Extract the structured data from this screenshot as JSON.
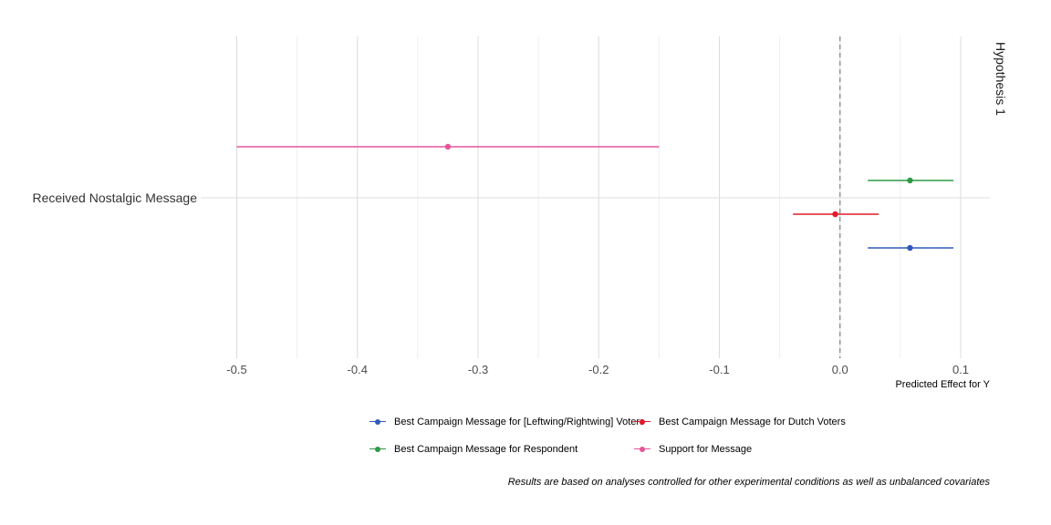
{
  "chart_data": {
    "type": "coefficient-plot",
    "categories": [
      "Received Nostalgic Message"
    ],
    "facet_label": "Hypothesis 1",
    "xlabel": "Predicted Effect for Y",
    "ylabel": "",
    "xlim": [
      -0.5,
      0.125
    ],
    "x_ticks": [
      -0.5,
      -0.4,
      -0.3,
      -0.2,
      -0.1,
      0.0,
      0.1
    ],
    "x_tick_labels": [
      "-0.5",
      "-0.4",
      "-0.3",
      "-0.2",
      "-0.1",
      "0.0",
      "0.1"
    ],
    "reference_line": 0,
    "grid": true,
    "legend_position": "bottom",
    "series": [
      {
        "name": "Best Campaign Message for [Leftwing/Rightwing] Voters",
        "color": "#2E5BBA",
        "estimate": 0.058,
        "ci": [
          0.023,
          0.094
        ]
      },
      {
        "name": "Best Campaign Message for Dutch Voters",
        "color": "#E41A2C",
        "estimate": -0.004,
        "ci": [
          -0.039,
          0.032
        ]
      },
      {
        "name": "Best Campaign Message for Respondent",
        "color": "#2E9A47",
        "estimate": 0.058,
        "ci": [
          0.023,
          0.094
        ]
      },
      {
        "name": "Support for Message",
        "color": "#E6559A",
        "estimate": -0.325,
        "ci": [
          -0.5,
          -0.15
        ]
      }
    ],
    "caption": "Results are based on analyses controlled for other experimental conditions as well as unbalanced covariates"
  }
}
